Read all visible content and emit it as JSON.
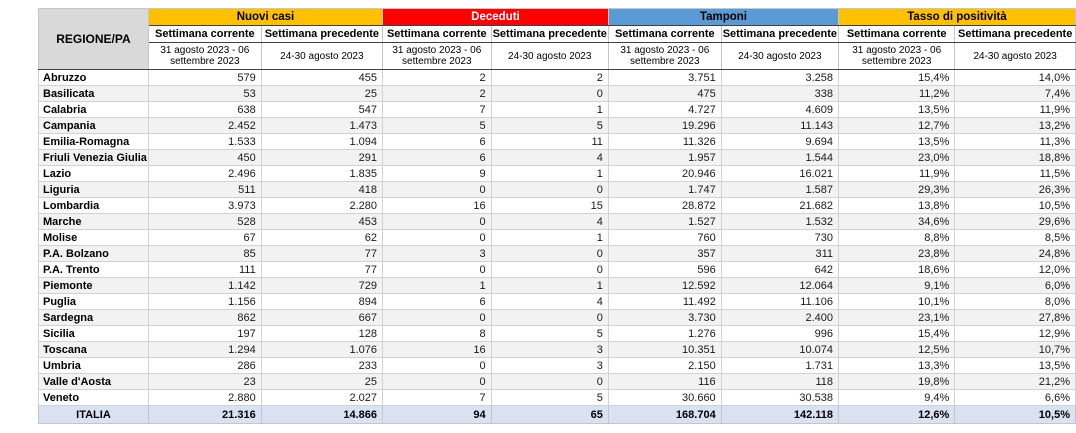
{
  "header": {
    "region_col": "REGIONE/PA",
    "groups": [
      {
        "label": "Nuovi casi",
        "color": "#FFC000",
        "text_color": "#000000"
      },
      {
        "label": "Deceduti",
        "color": "#FF0000",
        "text_color": "#FFFFFF"
      },
      {
        "label": "Tamponi",
        "color": "#5B9BD5",
        "text_color": "#000000"
      },
      {
        "label": "Tasso di positività",
        "color": "#FFC000",
        "text_color": "#000000"
      }
    ],
    "subcols": [
      "Settimana corrente",
      "Settimana precedente"
    ],
    "current_week": "31 agosto 2023 - 06 settembre 2023",
    "previous_week": "24-30 agosto 2023"
  },
  "rows": [
    {
      "region": "Abruzzo",
      "values": [
        "579",
        "455",
        "2",
        "2",
        "3.751",
        "3.258",
        "15,4%",
        "14,0%"
      ]
    },
    {
      "region": "Basilicata",
      "values": [
        "53",
        "25",
        "2",
        "0",
        "475",
        "338",
        "11,2%",
        "7,4%"
      ]
    },
    {
      "region": "Calabria",
      "values": [
        "638",
        "547",
        "7",
        "1",
        "4.727",
        "4.609",
        "13,5%",
        "11,9%"
      ]
    },
    {
      "region": "Campania",
      "values": [
        "2.452",
        "1.473",
        "5",
        "5",
        "19.296",
        "11.143",
        "12,7%",
        "13,2%"
      ]
    },
    {
      "region": "Emilia-Romagna",
      "values": [
        "1.533",
        "1.094",
        "6",
        "11",
        "11.326",
        "9.694",
        "13,5%",
        "11,3%"
      ]
    },
    {
      "region": "Friuli Venezia Giulia",
      "values": [
        "450",
        "291",
        "6",
        "4",
        "1.957",
        "1.544",
        "23,0%",
        "18,8%"
      ]
    },
    {
      "region": "Lazio",
      "values": [
        "2.496",
        "1.835",
        "9",
        "1",
        "20.946",
        "16.021",
        "11,9%",
        "11,5%"
      ]
    },
    {
      "region": "Liguria",
      "values": [
        "511",
        "418",
        "0",
        "0",
        "1.747",
        "1.587",
        "29,3%",
        "26,3%"
      ]
    },
    {
      "region": "Lombardia",
      "values": [
        "3.973",
        "2.280",
        "16",
        "15",
        "28.872",
        "21.682",
        "13,8%",
        "10,5%"
      ]
    },
    {
      "region": "Marche",
      "values": [
        "528",
        "453",
        "0",
        "4",
        "1.527",
        "1.532",
        "34,6%",
        "29,6%"
      ]
    },
    {
      "region": "Molise",
      "values": [
        "67",
        "62",
        "0",
        "1",
        "760",
        "730",
        "8,8%",
        "8,5%"
      ]
    },
    {
      "region": "P.A. Bolzano",
      "values": [
        "85",
        "77",
        "3",
        "0",
        "357",
        "311",
        "23,8%",
        "24,8%"
      ]
    },
    {
      "region": "P.A. Trento",
      "values": [
        "111",
        "77",
        "0",
        "0",
        "596",
        "642",
        "18,6%",
        "12,0%"
      ]
    },
    {
      "region": "Piemonte",
      "values": [
        "1.142",
        "729",
        "1",
        "1",
        "12.592",
        "12.064",
        "9,1%",
        "6,0%"
      ]
    },
    {
      "region": "Puglia",
      "values": [
        "1.156",
        "894",
        "6",
        "4",
        "11.492",
        "11.106",
        "10,1%",
        "8,0%"
      ]
    },
    {
      "region": "Sardegna",
      "values": [
        "862",
        "667",
        "0",
        "0",
        "3.730",
        "2.400",
        "23,1%",
        "27,8%"
      ]
    },
    {
      "region": "Sicilia",
      "values": [
        "197",
        "128",
        "8",
        "5",
        "1.276",
        "996",
        "15,4%",
        "12,9%"
      ]
    },
    {
      "region": "Toscana",
      "values": [
        "1.294",
        "1.076",
        "16",
        "3",
        "10.351",
        "10.074",
        "12,5%",
        "10,7%"
      ]
    },
    {
      "region": "Umbria",
      "values": [
        "286",
        "233",
        "0",
        "3",
        "2.150",
        "1.731",
        "13,3%",
        "13,5%"
      ]
    },
    {
      "region": "Valle d'Aosta",
      "values": [
        "23",
        "25",
        "0",
        "0",
        "116",
        "118",
        "19,8%",
        "21,2%"
      ]
    },
    {
      "region": "Veneto",
      "values": [
        "2.880",
        "2.027",
        "7",
        "5",
        "30.660",
        "30.538",
        "9,4%",
        "6,6%"
      ]
    }
  ],
  "total": {
    "region": "ITALIA",
    "values": [
      "21.316",
      "14.866",
      "94",
      "65",
      "168.704",
      "142.118",
      "12,6%",
      "10,5%"
    ]
  },
  "colors": {
    "header_region_bg": "#D9D9D9",
    "row_stripe": "#F2F2F2",
    "total_row_bg": "#D9E1F2"
  }
}
